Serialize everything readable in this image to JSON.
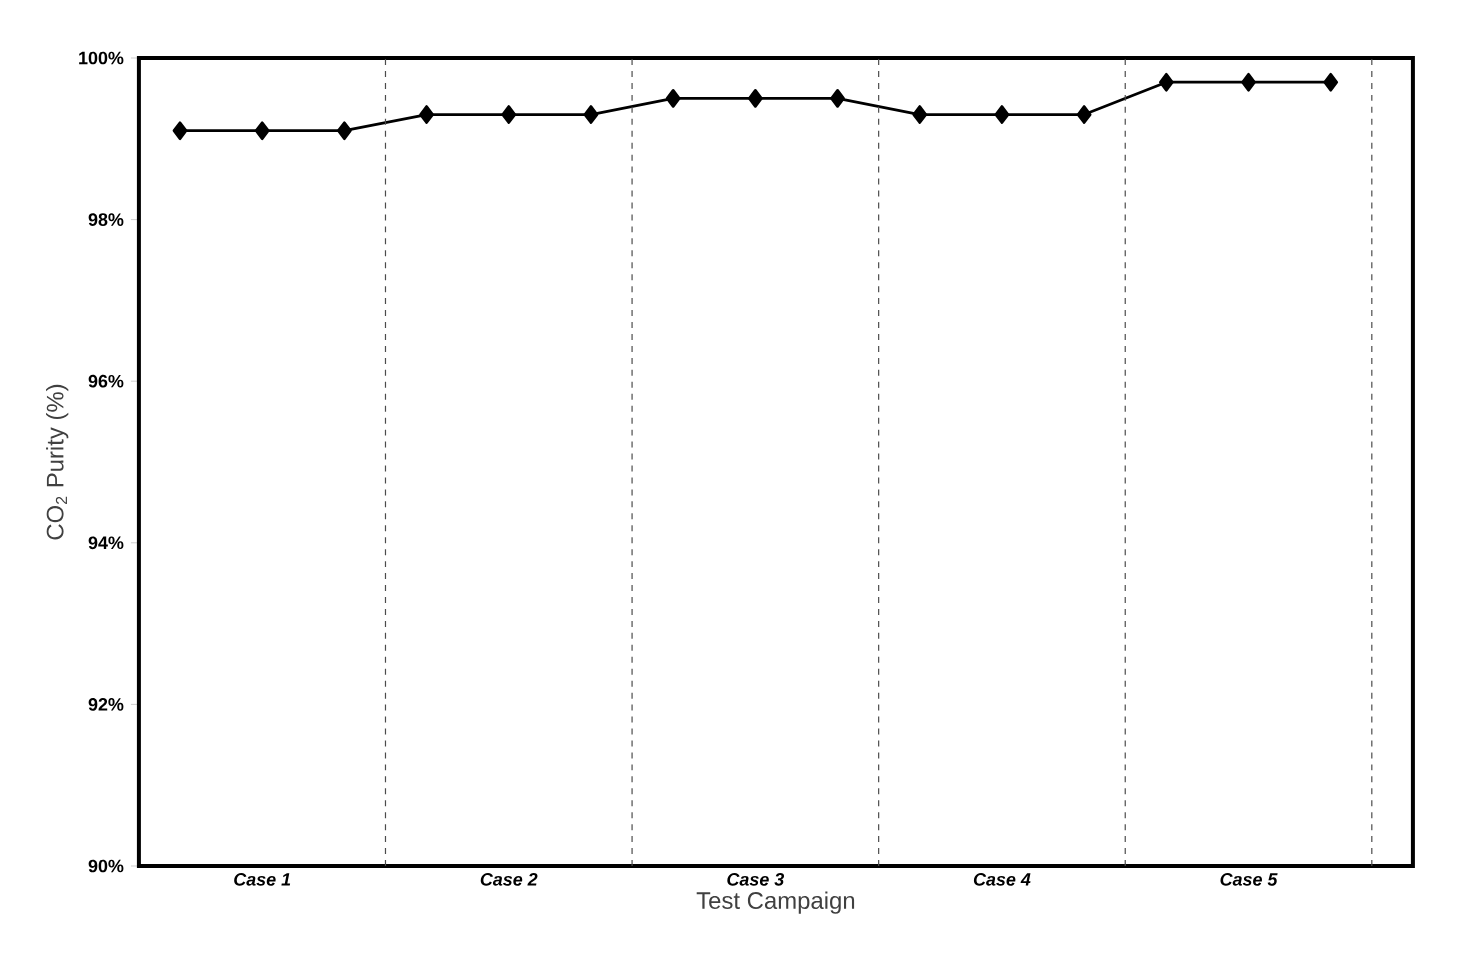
{
  "chart_data": {
    "type": "line",
    "xlabel": "Test Campaign",
    "ylabel": "CO$_{2}$ Purity (%)",
    "categories": [
      null,
      "Case 1",
      null,
      null,
      "Case 2",
      null,
      null,
      "Case 3",
      null,
      null,
      "Case 4",
      null,
      null,
      "Case 5",
      null
    ],
    "series": [
      {
        "color": "#000000",
        "values": [
          99.1,
          99.1,
          99.1,
          99.3,
          99.3,
          99.3,
          99.5,
          99.5,
          99.5,
          99.3,
          99.3,
          99.3,
          99.7,
          99.7,
          99.7
        ]
      }
    ],
    "ylim": [
      90,
      100
    ],
    "yticks": [
      {
        "value": 90,
        "label": "90%"
      },
      {
        "value": 92,
        "label": "92%"
      },
      {
        "value": 94,
        "label": "94%"
      },
      {
        "value": 96,
        "label": "96%"
      },
      {
        "value": 98,
        "label": "98%"
      },
      {
        "value": 100,
        "label": "100%"
      }
    ],
    "marker": "diamond",
    "line_style": "solid"
  }
}
